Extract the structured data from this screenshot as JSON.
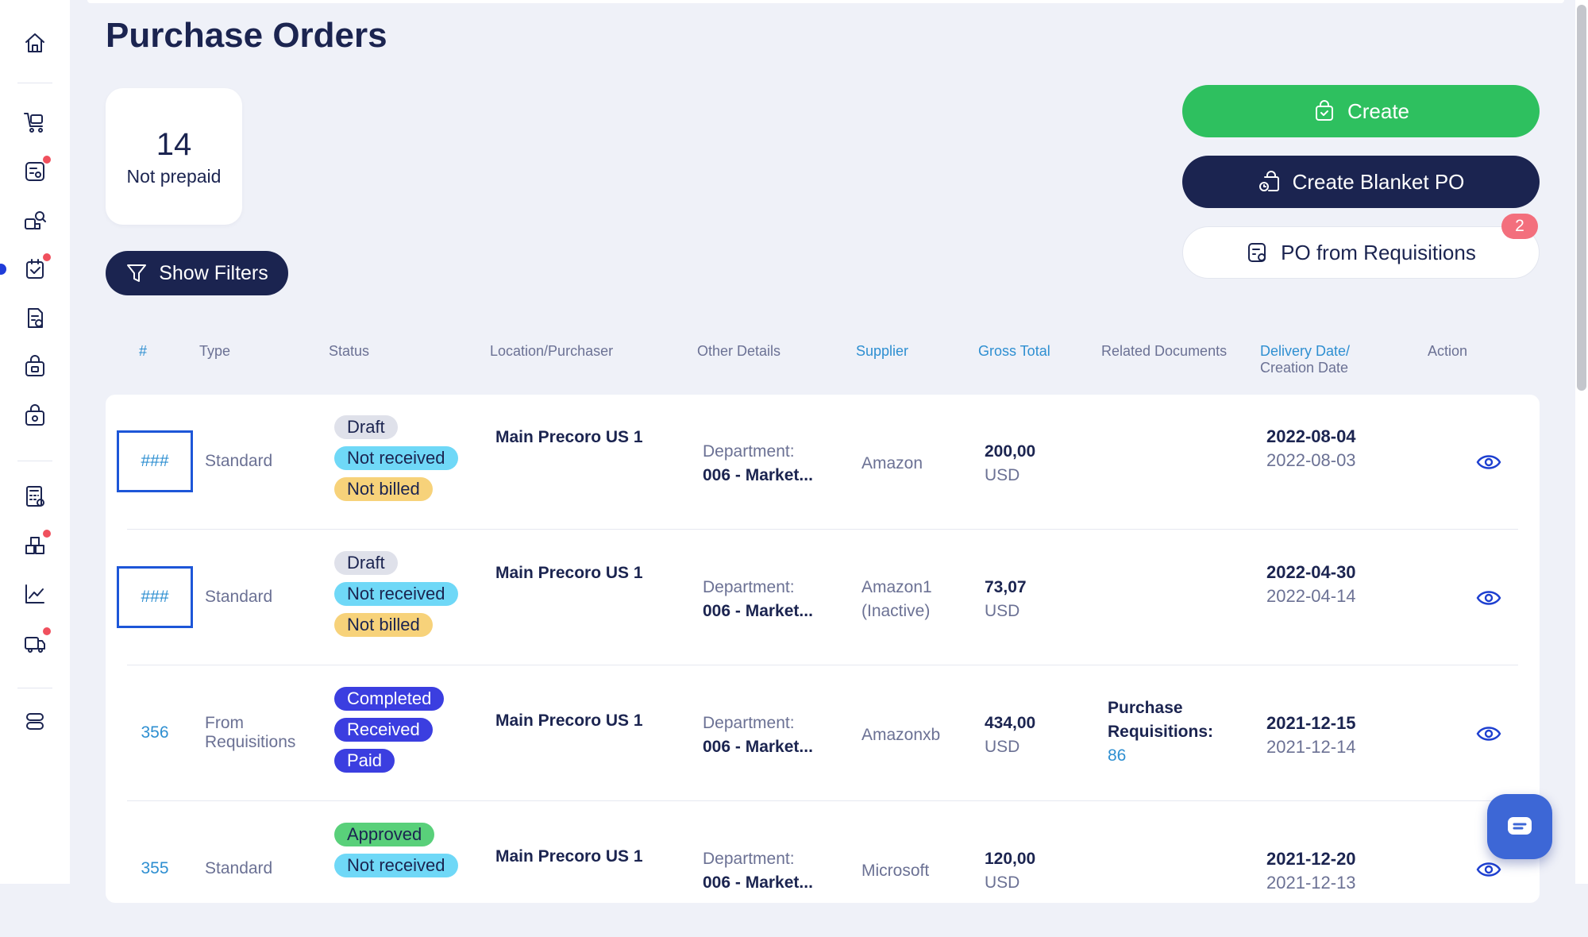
{
  "page": {
    "title": "Purchase Orders"
  },
  "stat": {
    "count": "14",
    "label": "Not prepaid"
  },
  "filters": {
    "label": "Show Filters"
  },
  "actions": {
    "create": "Create",
    "create_blanket": "Create Blanket PO",
    "from_requisitions": "PO from Requisitions",
    "requisitions_badge": "2"
  },
  "columns": {
    "num": "#",
    "type": "Type",
    "status": "Status",
    "location": "Location/Purchaser",
    "other": "Other Details",
    "supplier": "Supplier",
    "gross": "Gross Total",
    "related": "Related Documents",
    "delivery": "Delivery Date/",
    "creation": "Creation Date",
    "action": "Action"
  },
  "rows": [
    {
      "num": "###",
      "type": "Standard",
      "badges": [
        "Draft",
        "Not received",
        "Not billed"
      ],
      "location": "Main Precoro US 1",
      "other_label": "Department:",
      "other_value": "006 - Market...",
      "supplier": "Amazon",
      "total": "200,00",
      "currency": "USD",
      "related_label": "",
      "related_link": "",
      "delivery": "2022-08-04",
      "created": "2022-08-03"
    },
    {
      "num": "###",
      "type": "Standard",
      "badges": [
        "Draft",
        "Not received",
        "Not billed"
      ],
      "location": "Main Precoro US 1",
      "other_label": "Department:",
      "other_value": "006 - Market...",
      "supplier": "Amazon1 (Inactive)",
      "total": "73,07",
      "currency": "USD",
      "related_label": "",
      "related_link": "",
      "delivery": "2022-04-30",
      "created": "2022-04-14"
    },
    {
      "num": "356",
      "type": "From Requisitions",
      "badges": [
        "Completed",
        "Received",
        "Paid"
      ],
      "location": "Main Precoro US 1",
      "other_label": "Department:",
      "other_value": "006 - Market...",
      "supplier": "Amazonxb",
      "total": "434,00",
      "currency": "USD",
      "related_label": "Purchase Requisitions:",
      "related_link": "86",
      "delivery": "2021-12-15",
      "created": "2021-12-14"
    },
    {
      "num": "355",
      "type": "Standard",
      "badges": [
        "Approved",
        "Not received"
      ],
      "location": "Main Precoro US 1",
      "other_label": "Department:",
      "other_value": "006 - Market...",
      "supplier": "Microsoft",
      "total": "120,00",
      "currency": "USD",
      "related_label": "",
      "related_link": "",
      "delivery": "2021-12-20",
      "created": "2021-12-13"
    }
  ],
  "icons": {
    "sidebar": [
      "home-icon",
      "cart-icon",
      "requisition-icon",
      "catalog-icon",
      "order-icon",
      "invoice-icon",
      "bag-icon",
      "bag-lock-icon",
      "budget-icon",
      "warehouse-icon",
      "chart-icon",
      "delivery-icon",
      "settings-icon"
    ],
    "chat": "chat-icon",
    "action": "eye-icon"
  },
  "colors": {
    "primary_dark": "#1b2450",
    "create_green": "#2ec05f",
    "link_blue": "#2e8fd1",
    "badge_red": "#f36f7d"
  }
}
